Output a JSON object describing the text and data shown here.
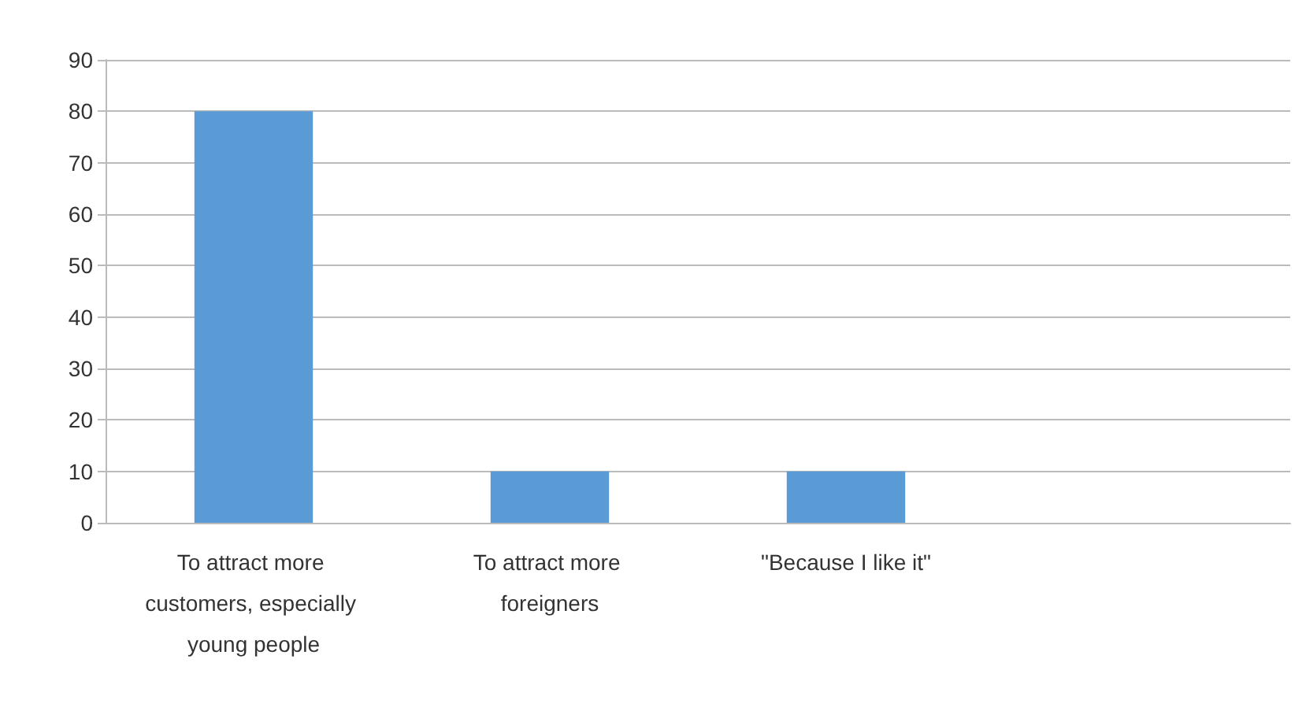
{
  "chart_data": {
    "type": "bar",
    "categories": [
      "To attract more customers, especially young people",
      "To attract more foreigners",
      "\"Because I like it\"",
      null
    ],
    "values": [
      80,
      10,
      10,
      null
    ],
    "color": "#5b9bd5",
    "ylim": [
      0,
      90
    ],
    "yticks": [
      0,
      10,
      20,
      30,
      40,
      50,
      60,
      70,
      80,
      90
    ],
    "grid": "y"
  }
}
